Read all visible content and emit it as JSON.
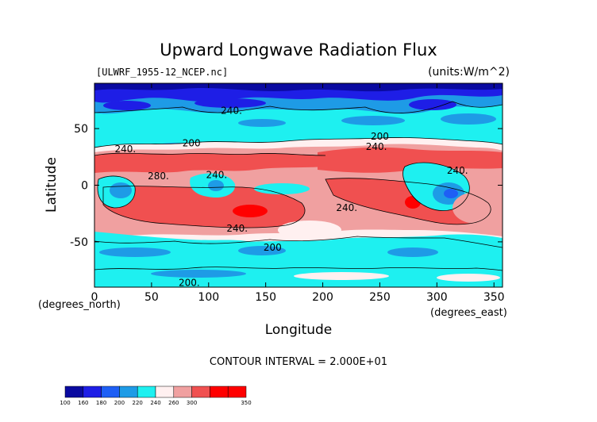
{
  "chart_data": {
    "type": "heatmap",
    "title": "Upward Longwave Radiation Flux",
    "file_label": "[ULWRF_1955-12_NCEP.nc]",
    "units_label": "(units:W/m^2)",
    "xlabel": "Longitude",
    "ylabel": "Latitude",
    "x_unit_label": "(degrees_east)",
    "y_unit_label": "(degrees_north)",
    "xlim": [
      0,
      357.5
    ],
    "ylim": [
      -90,
      90
    ],
    "x_ticks": [
      {
        "value": 0,
        "label": "0"
      },
      {
        "value": 50,
        "label": "50"
      },
      {
        "value": 100,
        "label": "100"
      },
      {
        "value": 150,
        "label": "150"
      },
      {
        "value": 200,
        "label": "200"
      },
      {
        "value": 250,
        "label": "250"
      },
      {
        "value": 300,
        "label": "300"
      },
      {
        "value": 350,
        "label": "350"
      }
    ],
    "y_ticks": [
      {
        "value": 50,
        "label": "50"
      },
      {
        "value": 0,
        "label": "0"
      },
      {
        "value": -50,
        "label": "-50"
      }
    ],
    "contour_interval_label": "CONTOUR INTERVAL = 2.000E+01",
    "colorbar": {
      "levels": [
        {
          "label": "100",
          "color": "#0a0aa0"
        },
        {
          "label": "160",
          "color": "#1e1ee6"
        },
        {
          "label": "180",
          "color": "#1e5ff5"
        },
        {
          "label": "200",
          "color": "#1e9be6"
        },
        {
          "label": "220",
          "color": "#1ef0f0"
        },
        {
          "label": "240",
          "color": "#fff0f0"
        },
        {
          "label": "260",
          "color": "#f0a0a0"
        },
        {
          "label": "300",
          "color": "#f05050"
        },
        {
          "label": "350",
          "color": "#ff0000"
        }
      ],
      "extra_color": "#ff0000"
    },
    "contour_labels": [
      {
        "text": "240.",
        "lon": 120,
        "lat": 66
      },
      {
        "text": "200",
        "lon": 85,
        "lat": 37
      },
      {
        "text": "200",
        "lon": 250,
        "lat": 43
      },
      {
        "text": "240.",
        "lon": 27,
        "lat": 32
      },
      {
        "text": "240.",
        "lon": 247,
        "lat": 34
      },
      {
        "text": "280.",
        "lon": 56,
        "lat": 8
      },
      {
        "text": "240.",
        "lon": 107,
        "lat": 9
      },
      {
        "text": "240.",
        "lon": 318,
        "lat": 13
      },
      {
        "text": "240.",
        "lon": 125,
        "lat": -38
      },
      {
        "text": "240.",
        "lon": 221,
        "lat": -20
      },
      {
        "text": "200",
        "lon": 156,
        "lat": -55
      },
      {
        "text": "200.",
        "lon": 83,
        "lat": -86
      }
    ]
  }
}
